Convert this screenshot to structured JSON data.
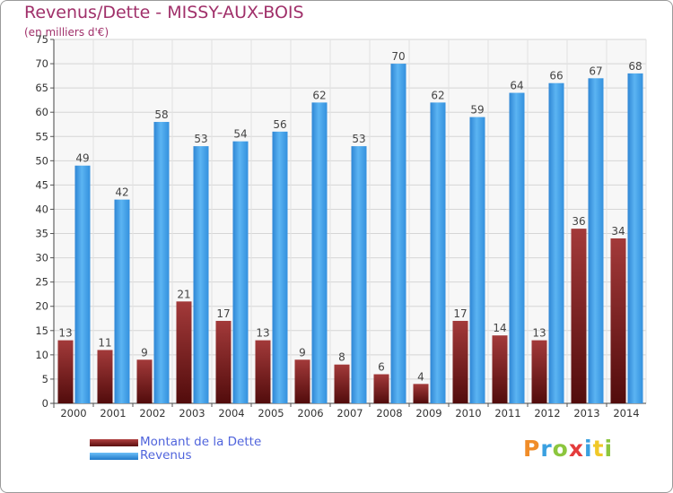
{
  "header": {
    "title": "Revenus/Dette - MISSY-AUX-BOIS",
    "subtitle": "(en milliers d'€)"
  },
  "legend": {
    "items": [
      {
        "label": "Montant de la Dette",
        "color": "#7a1c1c"
      },
      {
        "label": "Revenus",
        "color": "#3a9ae6"
      }
    ]
  },
  "logo": {
    "letters": [
      {
        "char": "P",
        "color": "#f08c28"
      },
      {
        "char": "r",
        "color": "#3aa0e0"
      },
      {
        "char": "o",
        "color": "#8cc63e"
      },
      {
        "char": "x",
        "color": "#e43c3c"
      },
      {
        "char": "i",
        "color": "#3aa0e0"
      },
      {
        "char": "t",
        "color": "#f0c828"
      },
      {
        "char": "i",
        "color": "#8cc63e"
      }
    ]
  },
  "chart_data": {
    "type": "bar",
    "title": "Revenus/Dette - MISSY-AUX-BOIS",
    "subtitle": "(en milliers d'€)",
    "xlabel": "",
    "ylabel": "",
    "ylim": [
      0,
      75
    ],
    "yticks": [
      0,
      5,
      10,
      15,
      20,
      25,
      30,
      35,
      40,
      45,
      50,
      55,
      60,
      65,
      70,
      75
    ],
    "grid": true,
    "legend_position": "bottom-left",
    "categories": [
      "2000",
      "2001",
      "2002",
      "2003",
      "2004",
      "2005",
      "2006",
      "2007",
      "2008",
      "2009",
      "2010",
      "2011",
      "2012",
      "2013",
      "2014"
    ],
    "series": [
      {
        "name": "Montant de la Dette",
        "color": "#7a1c1c",
        "values": [
          13,
          11,
          9,
          21,
          17,
          13,
          9,
          8,
          6,
          4,
          17,
          14,
          13,
          36,
          34
        ]
      },
      {
        "name": "Revenus",
        "color": "#3a9ae6",
        "values": [
          49,
          42,
          58,
          53,
          54,
          56,
          62,
          53,
          70,
          62,
          59,
          64,
          66,
          67,
          68
        ]
      }
    ]
  }
}
